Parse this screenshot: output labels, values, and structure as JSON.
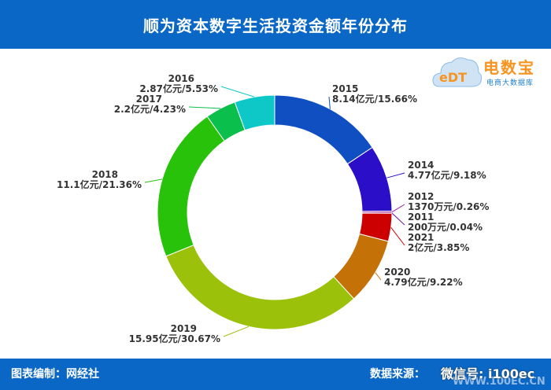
{
  "title": "顺为资本数字生活投资金额年份分布",
  "logo": {
    "text": "电数宝",
    "sub": "电商大数据库",
    "mark": "eDT"
  },
  "footer": {
    "left": "图表编制：网经社",
    "right": "数据来源：",
    "wechat": "微信号: i100ec",
    "watermark": "WWW.100EC.CN"
  },
  "colors": {
    "header": "#0a67c6",
    "footer": "#0a67c6",
    "logo_orange": "#f7931e",
    "logo_blue": "#1a7fcf"
  },
  "chart_data": {
    "type": "pie",
    "donut": true,
    "slices": [
      {
        "year": "2015",
        "text": "8.14亿元/15.66%",
        "value": 15.66,
        "color": "#0f4fc1"
      },
      {
        "year": "2014",
        "text": "4.77亿元/9.18%",
        "value": 9.18,
        "color": "#2b0ec7"
      },
      {
        "year": "2012",
        "text": "1370万元/0.26%",
        "value": 0.26,
        "color": "#a01fa0"
      },
      {
        "year": "2011",
        "text": "200万元/0.04%",
        "value": 0.04,
        "color": "#6b0fa0"
      },
      {
        "year": "2021",
        "text": "2亿元/3.85%",
        "value": 3.85,
        "color": "#cc0000"
      },
      {
        "year": "2020",
        "text": "4.79亿元/9.22%",
        "value": 9.22,
        "color": "#c47208"
      },
      {
        "year": "2019",
        "text": "15.95亿元/30.67%",
        "value": 30.67,
        "color": "#9cc10a"
      },
      {
        "year": "2018",
        "text": "11.1亿元/21.36%",
        "value": 21.36,
        "color": "#28c20a"
      },
      {
        "year": "2017",
        "text": "2.2亿元/4.23%",
        "value": 4.23,
        "color": "#0bbf4c"
      },
      {
        "year": "2016",
        "text": "2.87亿元/5.53%",
        "value": 5.53,
        "color": "#0ec8c8"
      }
    ]
  }
}
